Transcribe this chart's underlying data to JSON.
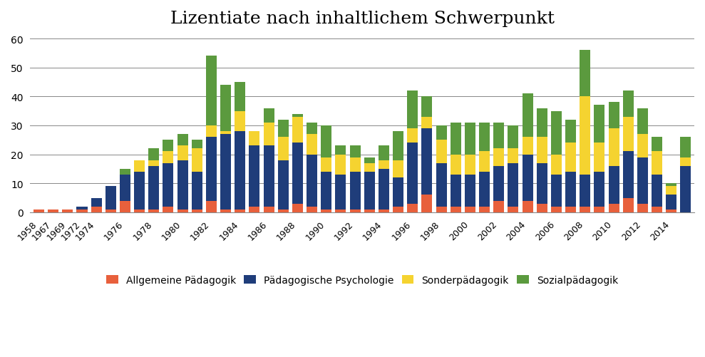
{
  "title": "Lizentiate nach inhaltlichem Schwerpunkt",
  "years": [
    1958,
    1967,
    1969,
    1972,
    1974,
    1975,
    1976,
    1977,
    1978,
    1979,
    1980,
    1981,
    1982,
    1983,
    1984,
    1985,
    1986,
    1987,
    1988,
    1989,
    1990,
    1991,
    1992,
    1993,
    1994,
    1995,
    1996,
    1997,
    1998,
    1999,
    2000,
    2001,
    2002,
    2003,
    2004,
    2005,
    2006,
    2007,
    2008,
    2009,
    2010,
    2011,
    2012,
    2013,
    2014,
    2015
  ],
  "tick_years": [
    1958,
    1967,
    1969,
    1972,
    1974,
    1976,
    1978,
    1980,
    1982,
    1984,
    1986,
    1988,
    1990,
    1992,
    1994,
    1996,
    1998,
    2000,
    2002,
    2004,
    2006,
    2008,
    2010,
    2012,
    2014
  ],
  "allgemeine_paedagogik": [
    1,
    1,
    1,
    1,
    2,
    1,
    4,
    1,
    1,
    2,
    1,
    1,
    4,
    1,
    1,
    2,
    2,
    1,
    3,
    2,
    1,
    1,
    1,
    1,
    1,
    2,
    3,
    6,
    2,
    2,
    2,
    2,
    4,
    2,
    4,
    3,
    2,
    2,
    2,
    2,
    3,
    5,
    3,
    2,
    1,
    0
  ],
  "paedagogische_psychologie": [
    0,
    0,
    0,
    1,
    3,
    8,
    9,
    13,
    15,
    15,
    17,
    13,
    22,
    26,
    27,
    21,
    21,
    17,
    21,
    18,
    13,
    12,
    13,
    13,
    14,
    10,
    21,
    23,
    15,
    11,
    11,
    12,
    12,
    15,
    16,
    14,
    11,
    12,
    11,
    12,
    13,
    16,
    16,
    11,
    5,
    16
  ],
  "sonderpaedagogik": [
    0,
    0,
    0,
    0,
    0,
    0,
    0,
    4,
    2,
    4,
    5,
    8,
    4,
    1,
    7,
    5,
    8,
    8,
    9,
    7,
    5,
    7,
    5,
    3,
    3,
    6,
    5,
    4,
    8,
    7,
    7,
    7,
    6,
    5,
    6,
    9,
    7,
    10,
    27,
    10,
    13,
    12,
    8,
    8,
    3,
    3
  ],
  "sozialpaedagogik": [
    0,
    0,
    0,
    0,
    0,
    0,
    2,
    0,
    4,
    4,
    4,
    3,
    24,
    16,
    10,
    0,
    5,
    6,
    1,
    4,
    11,
    3,
    4,
    2,
    5,
    10,
    13,
    7,
    5,
    11,
    11,
    10,
    9,
    8,
    15,
    10,
    15,
    8,
    16,
    13,
    9,
    9,
    9,
    5,
    1,
    7
  ],
  "colors": {
    "allgemeine_paedagogik": "#E8603C",
    "paedagogische_psychologie": "#1F3D7A",
    "sonderpaedagogik": "#F5D330",
    "sozialpaedagogik": "#5B9A3E"
  },
  "legend_labels": [
    "Allgemeine Pädagogik",
    "Pädagogische Psychologie",
    "Sonderpädagogik",
    "Sozialpädagogik"
  ],
  "ylim": [
    0,
    62
  ],
  "yticks": [
    0,
    10,
    20,
    30,
    40,
    50,
    60
  ],
  "background_color": "#ffffff",
  "title_fontsize": 18
}
